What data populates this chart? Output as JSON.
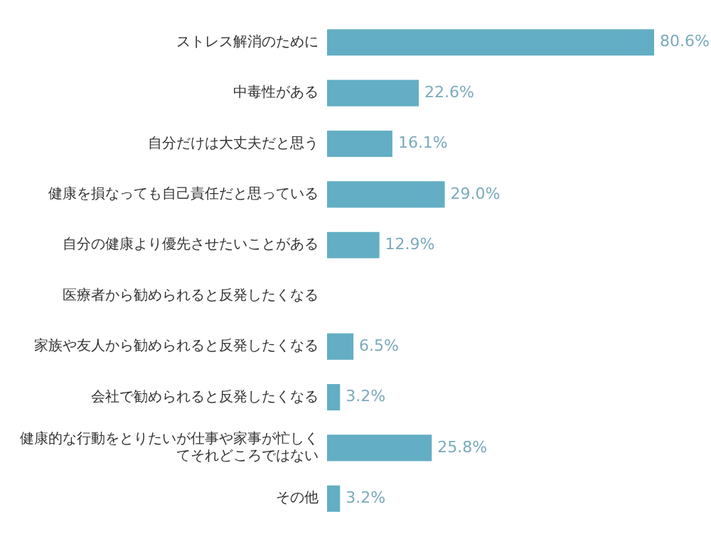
{
  "chart_data": {
    "type": "bar",
    "orientation": "horizontal",
    "categories": [
      "ストレス解消のために",
      "中毒性がある",
      "自分だけは大丈夫だと思う",
      "健康を損なっても自己責任だと思っている",
      "自分の健康より優先させたいことがある",
      "医療者から勧められると反発したくなる",
      "家族や友人から勧められると反発したくなる",
      "会社で勧められると反発したくなる",
      "健康的な行動をとりたいが仕事や家事が忙しくてそれどころではない",
      "その他"
    ],
    "values": [
      80.6,
      22.6,
      16.1,
      29.0,
      12.9,
      null,
      6.5,
      3.2,
      25.8,
      3.2
    ],
    "value_labels": [
      "80.6%",
      "22.6%",
      "16.1%",
      "29.0%",
      "12.9%",
      null,
      "6.5%",
      "3.2%",
      "25.8%",
      "3.2%"
    ],
    "color": "#63aec4"
  }
}
